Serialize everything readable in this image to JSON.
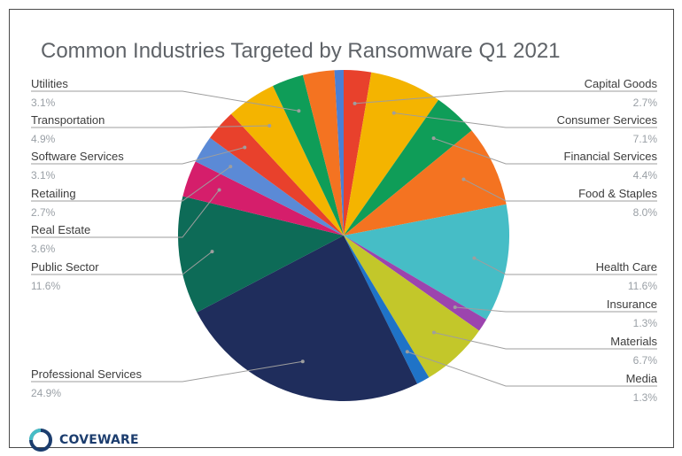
{
  "chart_data": {
    "type": "pie",
    "title": "Common Industries Targeted by Ransomware Q1 2021",
    "unit": "%",
    "slices": [
      {
        "label": "Capital Goods",
        "value": 2.7,
        "display": "2.7%",
        "color": "#e8412c"
      },
      {
        "label": "Consumer Services",
        "value": 7.1,
        "display": "7.1%",
        "color": "#f4b400"
      },
      {
        "label": "Financial Services",
        "value": 4.4,
        "display": "4.4%",
        "color": "#0f9d58"
      },
      {
        "label": "Food & Staples",
        "value": 8.0,
        "display": "8.0%",
        "color": "#f47321"
      },
      {
        "label": "Health Care",
        "value": 11.6,
        "display": "11.6%",
        "color": "#46bdc6"
      },
      {
        "label": "Insurance",
        "value": 1.3,
        "display": "1.3%",
        "color": "#9c44ae"
      },
      {
        "label": "Materials",
        "value": 6.7,
        "display": "6.7%",
        "color": "#c3c72a"
      },
      {
        "label": "Media",
        "value": 1.3,
        "display": "1.3%",
        "color": "#1f73c7"
      },
      {
        "label": "Professional Services",
        "value": 24.9,
        "display": "24.9%",
        "color": "#1f2d5c"
      },
      {
        "label": "Public Sector",
        "value": 11.6,
        "display": "11.6%",
        "color": "#0d6b57"
      },
      {
        "label": "Real Estate",
        "value": 3.6,
        "display": "3.6%",
        "color": "#d51e6b"
      },
      {
        "label": "Retailing",
        "value": 2.7,
        "display": "2.7%",
        "color": "#5b8ad6"
      },
      {
        "label": "Software Services",
        "value": 3.1,
        "display": "3.1%",
        "color": "#e8412c"
      },
      {
        "label": "Transportation",
        "value": 4.9,
        "display": "4.9%",
        "color": "#f4b400"
      },
      {
        "label": "Utilities",
        "value": 3.1,
        "display": "3.1%",
        "color": "#0f9d58"
      },
      {
        "label": "",
        "value": 3.1,
        "display": "",
        "color": "#f47321"
      },
      {
        "label": "",
        "value": 0.9,
        "display": "",
        "color": "#4a7fd4"
      }
    ]
  },
  "logo": {
    "text": "COVEWARE"
  }
}
